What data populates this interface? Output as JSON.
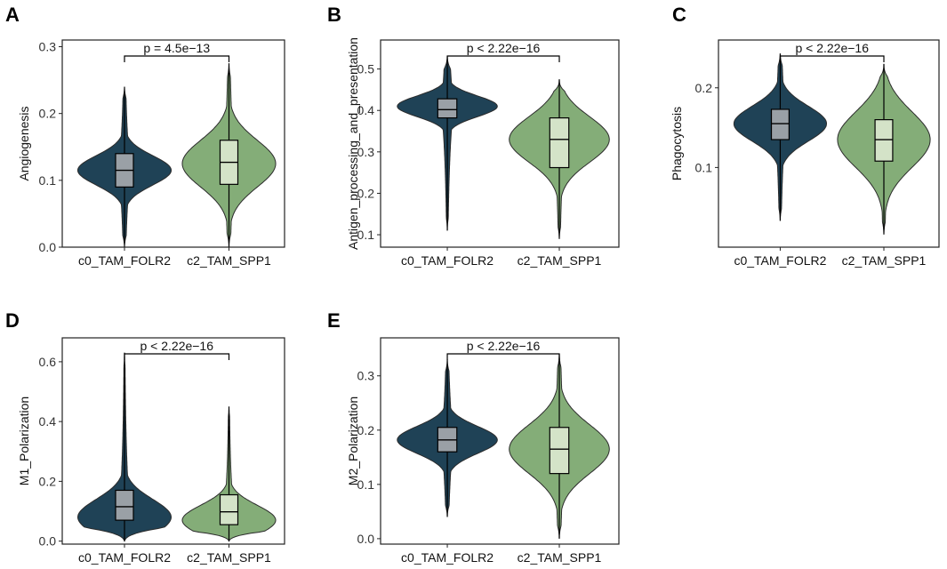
{
  "chart_data": [
    {
      "type": "violin",
      "panel": "A",
      "ylabel": "Angiogenesis",
      "categories": [
        "c0_TAM_FOLR2",
        "c2_TAM_SPP1"
      ],
      "ylim": [
        0.0,
        0.31
      ],
      "yticks": [
        "0.0",
        "0.1",
        "0.2",
        "0.3"
      ],
      "yticks_values": [
        0.0,
        0.1,
        0.2,
        0.3
      ],
      "pvalue": "p = 4.5e−13",
      "groups": [
        {
          "name": "c0_TAM_FOLR2",
          "min": 0.0,
          "max": 0.24,
          "q1": 0.09,
          "median": 0.115,
          "q3": 0.14,
          "mode": 0.115,
          "spread": 0.022,
          "color": "#1f4256",
          "boxcolor": "#9aa0a6"
        },
        {
          "name": "c2_TAM_SPP1",
          "min": 0.0,
          "max": 0.275,
          "q1": 0.094,
          "median": 0.127,
          "q3": 0.16,
          "mode": 0.125,
          "spread": 0.035,
          "color": "#84ad78",
          "boxcolor": "#d4e3c8"
        }
      ]
    },
    {
      "type": "violin",
      "panel": "B",
      "ylabel": "Antigen_processing_and_presentation",
      "categories": [
        "c0_TAM_FOLR2",
        "c2_TAM_SPP1"
      ],
      "ylim": [
        0.07,
        0.57
      ],
      "yticks": [
        "0.1",
        "0.2",
        "0.3",
        "0.4",
        "0.5"
      ],
      "yticks_values": [
        0.1,
        0.2,
        0.3,
        0.4,
        0.5
      ],
      "pvalue": "p < 2.22e−16",
      "groups": [
        {
          "name": "c0_TAM_FOLR2",
          "min": 0.11,
          "max": 0.53,
          "q1": 0.382,
          "median": 0.402,
          "q3": 0.428,
          "mode": 0.41,
          "spread": 0.025,
          "color": "#1f4256",
          "boxcolor": "#9aa0a6"
        },
        {
          "name": "c2_TAM_SPP1",
          "min": 0.09,
          "max": 0.475,
          "q1": 0.262,
          "median": 0.33,
          "q3": 0.382,
          "mode": 0.33,
          "spread": 0.055,
          "color": "#84ad78",
          "boxcolor": "#d4e3c8"
        }
      ]
    },
    {
      "type": "violin",
      "panel": "C",
      "ylabel": "Phagocytosis",
      "categories": [
        "c0_TAM_FOLR2",
        "c2_TAM_SPP1"
      ],
      "ylim": [
        0.0,
        0.26
      ],
      "yticks": [
        "0.1",
        "0.2"
      ],
      "yticks_values": [
        0.1,
        0.2
      ],
      "pvalue": "p < 2.22e−16",
      "groups": [
        {
          "name": "c0_TAM_FOLR2",
          "min": 0.033,
          "max": 0.243,
          "q1": 0.135,
          "median": 0.155,
          "q3": 0.173,
          "mode": 0.155,
          "spread": 0.022,
          "color": "#1f4256",
          "boxcolor": "#9aa0a6"
        },
        {
          "name": "c2_TAM_SPP1",
          "min": 0.016,
          "max": 0.23,
          "q1": 0.108,
          "median": 0.135,
          "q3": 0.16,
          "mode": 0.135,
          "spread": 0.035,
          "color": "#84ad78",
          "boxcolor": "#d4e3c8"
        }
      ]
    },
    {
      "type": "violin",
      "panel": "D",
      "ylabel": "M1_Polarization",
      "categories": [
        "c0_TAM_FOLR2",
        "c2_TAM_SPP1"
      ],
      "ylim": [
        -0.01,
        0.68
      ],
      "yticks": [
        "0.0",
        "0.2",
        "0.4",
        "0.6"
      ],
      "yticks_values": [
        0.0,
        0.2,
        0.4,
        0.6
      ],
      "pvalue": "p < 2.22e−16",
      "groups": [
        {
          "name": "c0_TAM_FOLR2",
          "min": 0.0,
          "max": 0.63,
          "q1": 0.07,
          "median": 0.115,
          "q3": 0.17,
          "mode": 0.08,
          "spread": 0.06,
          "color": "#1f4256",
          "boxcolor": "#9aa0a6"
        },
        {
          "name": "c2_TAM_SPP1",
          "min": 0.0,
          "max": 0.45,
          "q1": 0.055,
          "median": 0.098,
          "q3": 0.155,
          "mode": 0.07,
          "spread": 0.05,
          "color": "#84ad78",
          "boxcolor": "#d4e3c8"
        }
      ]
    },
    {
      "type": "violin",
      "panel": "E",
      "ylabel": "M2_Polarization",
      "categories": [
        "c0_TAM_FOLR2",
        "c2_TAM_SPP1"
      ],
      "ylim": [
        -0.01,
        0.37
      ],
      "yticks": [
        "0.0",
        "0.1",
        "0.2",
        "0.3"
      ],
      "yticks_values": [
        0.0,
        0.1,
        0.2,
        0.3
      ],
      "pvalue": "p < 2.22e−16",
      "groups": [
        {
          "name": "c0_TAM_FOLR2",
          "min": 0.04,
          "max": 0.33,
          "q1": 0.16,
          "median": 0.182,
          "q3": 0.205,
          "mode": 0.182,
          "spread": 0.025,
          "color": "#1f4256",
          "boxcolor": "#9aa0a6"
        },
        {
          "name": "c2_TAM_SPP1",
          "min": 0.0,
          "max": 0.34,
          "q1": 0.12,
          "median": 0.165,
          "q3": 0.205,
          "mode": 0.165,
          "spread": 0.045,
          "color": "#84ad78",
          "boxcolor": "#d4e3c8"
        }
      ]
    }
  ]
}
